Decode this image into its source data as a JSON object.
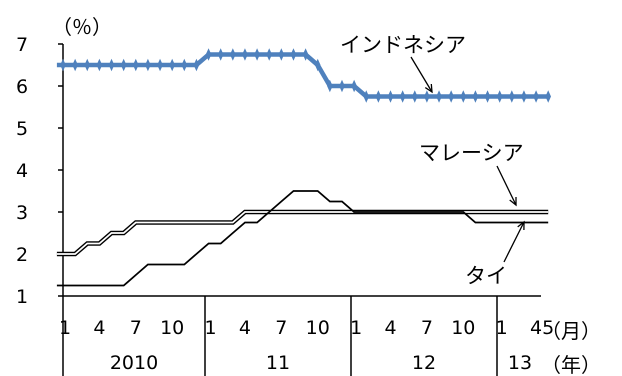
{
  "chart_data": {
    "type": "line",
    "y_unit_label": "（％）",
    "x_unit_month_label": "（月）",
    "x_unit_year_label": "（年）",
    "ylim": [
      1,
      7
    ],
    "yticks": [
      "1",
      "2",
      "3",
      "4",
      "5",
      "6",
      "7"
    ],
    "x": [
      "2010-01",
      "2010-02",
      "2010-03",
      "2010-04",
      "2010-05",
      "2010-06",
      "2010-07",
      "2010-08",
      "2010-09",
      "2010-10",
      "2010-11",
      "2010-12",
      "2011-01",
      "2011-02",
      "2011-03",
      "2011-04",
      "2011-05",
      "2011-06",
      "2011-07",
      "2011-08",
      "2011-09",
      "2011-10",
      "2011-11",
      "2011-12",
      "2012-01",
      "2012-02",
      "2012-03",
      "2012-04",
      "2012-05",
      "2012-06",
      "2012-07",
      "2012-08",
      "2012-09",
      "2012-10",
      "2012-11",
      "2012-12",
      "2013-01",
      "2013-02",
      "2013-03",
      "2013-04",
      "2013-05"
    ],
    "month_tick_labels": [
      {
        "label": "1",
        "x": "2010-01"
      },
      {
        "label": "4",
        "x": "2010-04"
      },
      {
        "label": "7",
        "x": "2010-07"
      },
      {
        "label": "10",
        "x": "2010-10"
      },
      {
        "label": "1",
        "x": "2011-01"
      },
      {
        "label": "4",
        "x": "2011-04"
      },
      {
        "label": "7",
        "x": "2011-07"
      },
      {
        "label": "10",
        "x": "2011-10"
      },
      {
        "label": "1",
        "x": "2012-01"
      },
      {
        "label": "4",
        "x": "2012-04"
      },
      {
        "label": "7",
        "x": "2012-07"
      },
      {
        "label": "10",
        "x": "2012-10"
      },
      {
        "label": "1",
        "x": "2013-01"
      },
      {
        "label": "4",
        "x": "2013-04"
      },
      {
        "label": "5",
        "x": "2013-05"
      }
    ],
    "year_labels": [
      "2010",
      "11",
      "12",
      "13"
    ],
    "series": [
      {
        "name": "インドネシア",
        "color": "#4f81bd",
        "style": "thick-line-with-markers",
        "values": [
          6.5,
          6.5,
          6.5,
          6.5,
          6.5,
          6.5,
          6.5,
          6.5,
          6.5,
          6.5,
          6.5,
          6.5,
          6.75,
          6.75,
          6.75,
          6.75,
          6.75,
          6.75,
          6.75,
          6.75,
          6.75,
          6.5,
          6.0,
          6.0,
          6.0,
          5.75,
          5.75,
          5.75,
          5.75,
          5.75,
          5.75,
          5.75,
          5.75,
          5.75,
          5.75,
          5.75,
          5.75,
          5.75,
          5.75,
          5.75,
          5.75
        ]
      },
      {
        "name": "マレーシア",
        "color": "#000000",
        "style": "double-line",
        "values": [
          2.0,
          2.0,
          2.25,
          2.25,
          2.5,
          2.5,
          2.75,
          2.75,
          2.75,
          2.75,
          2.75,
          2.75,
          2.75,
          2.75,
          2.75,
          3.0,
          3.0,
          3.0,
          3.0,
          3.0,
          3.0,
          3.0,
          3.0,
          3.0,
          3.0,
          3.0,
          3.0,
          3.0,
          3.0,
          3.0,
          3.0,
          3.0,
          3.0,
          3.0,
          3.0,
          3.0,
          3.0,
          3.0,
          3.0,
          3.0,
          3.0
        ]
      },
      {
        "name": "タイ",
        "color": "#000000",
        "style": "thin-line",
        "values": [
          1.25,
          1.25,
          1.25,
          1.25,
          1.25,
          1.25,
          1.5,
          1.75,
          1.75,
          1.75,
          1.75,
          2.0,
          2.25,
          2.25,
          2.5,
          2.75,
          2.75,
          3.0,
          3.25,
          3.5,
          3.5,
          3.5,
          3.25,
          3.25,
          3.0,
          3.0,
          3.0,
          3.0,
          3.0,
          3.0,
          3.0,
          3.0,
          3.0,
          3.0,
          2.75,
          2.75,
          2.75,
          2.75,
          2.75,
          2.75,
          2.75
        ]
      }
    ],
    "annotations": [
      {
        "text": "インドネシア",
        "series": "インドネシア"
      },
      {
        "text": "マレーシア",
        "series": "マレーシア"
      },
      {
        "text": "タイ",
        "series": "タイ"
      }
    ],
    "grid": false,
    "legend": "none"
  }
}
